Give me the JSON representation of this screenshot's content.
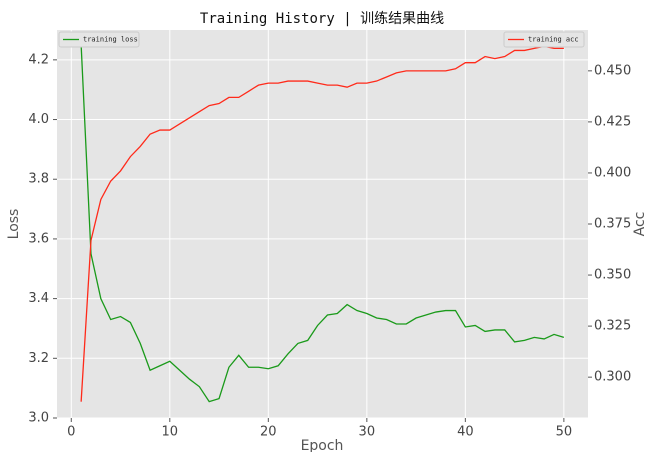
{
  "chart_data": {
    "type": "line",
    "title": "Training History | 训练结果曲线",
    "xlabel": "Epoch",
    "ylabel": "Loss",
    "y2label": "Acc",
    "x": [
      1,
      2,
      3,
      4,
      5,
      6,
      7,
      8,
      9,
      10,
      11,
      12,
      13,
      14,
      15,
      16,
      17,
      18,
      19,
      20,
      21,
      22,
      23,
      24,
      25,
      26,
      27,
      28,
      29,
      30,
      31,
      32,
      33,
      34,
      35,
      36,
      37,
      38,
      39,
      40,
      41,
      42,
      43,
      44,
      45,
      46,
      47,
      48,
      49,
      50
    ],
    "series": [
      {
        "name": "training loss",
        "color": "#1a9a1a",
        "axis": "y",
        "values": [
          4.25,
          3.55,
          3.4,
          3.33,
          3.34,
          3.32,
          3.25,
          3.16,
          3.175,
          3.19,
          3.16,
          3.13,
          3.105,
          3.055,
          3.065,
          3.17,
          3.21,
          3.17,
          3.17,
          3.165,
          3.175,
          3.215,
          3.25,
          3.26,
          3.31,
          3.345,
          3.35,
          3.38,
          3.36,
          3.35,
          3.335,
          3.33,
          3.315,
          3.315,
          3.335,
          3.345,
          3.355,
          3.36,
          3.36,
          3.305,
          3.31,
          3.29,
          3.295,
          3.295,
          3.255,
          3.26,
          3.27,
          3.265,
          3.28,
          3.27
        ]
      },
      {
        "name": "training acc",
        "color": "#ff2a1a",
        "axis": "y2",
        "values": [
          0.288,
          0.367,
          0.387,
          0.396,
          0.401,
          0.408,
          0.413,
          0.419,
          0.421,
          0.421,
          0.424,
          0.427,
          0.43,
          0.433,
          0.434,
          0.437,
          0.437,
          0.44,
          0.443,
          0.444,
          0.444,
          0.445,
          0.445,
          0.445,
          0.444,
          0.443,
          0.443,
          0.442,
          0.444,
          0.444,
          0.445,
          0.447,
          0.449,
          0.45,
          0.45,
          0.45,
          0.45,
          0.45,
          0.451,
          0.454,
          0.454,
          0.457,
          0.456,
          0.457,
          0.46,
          0.46,
          0.461,
          0.462,
          0.461,
          0.461
        ]
      }
    ],
    "xlim": [
      -1.45,
      52.45
    ],
    "xticks": [
      0,
      10,
      20,
      30,
      40,
      50
    ],
    "ylim": [
      3.0,
      4.3
    ],
    "yticks": [
      {
        "value": 3,
        "label": "3.0"
      },
      3.2,
      3.4,
      3.6,
      3.8,
      {
        "value": 4,
        "label": "4.0"
      },
      4.2
    ],
    "y2lim": [
      0.28,
      0.47
    ],
    "y2ticks": [
      {
        "value": 0.3,
        "label": "0.300"
      },
      0.325,
      {
        "value": 0.35,
        "label": "0.350"
      },
      0.375,
      {
        "value": 0.4,
        "label": "0.400"
      },
      0.425,
      {
        "value": 0.45,
        "label": "0.450"
      }
    ],
    "grid": true,
    "legend": {
      "y": "upper left",
      "y2": "upper right"
    }
  }
}
